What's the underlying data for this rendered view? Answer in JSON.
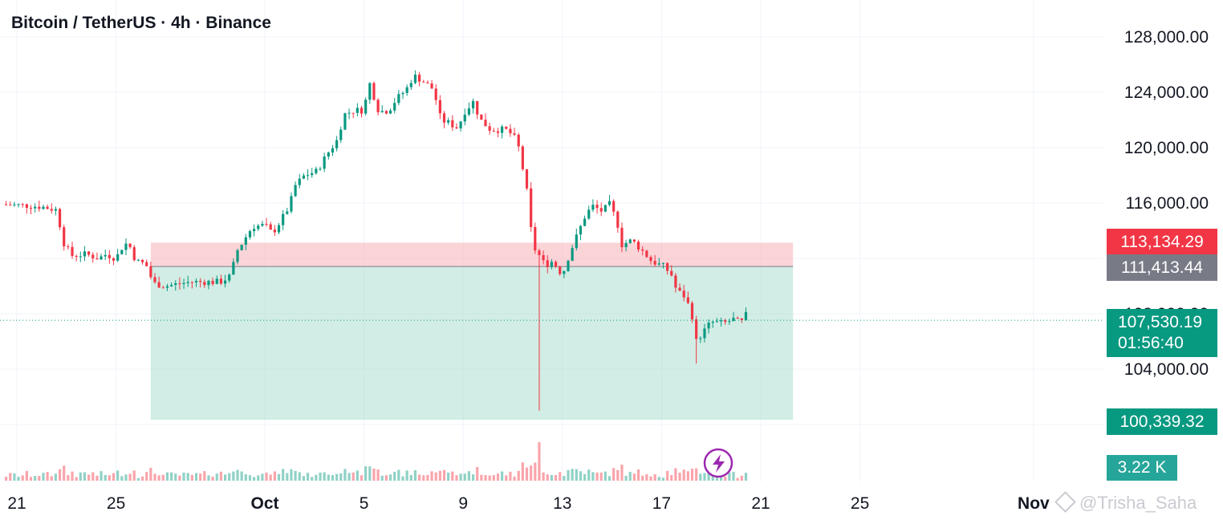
{
  "header": {
    "title": "Bitcoin / TetherUS · 4h · Binance"
  },
  "colors": {
    "up": "#089981",
    "down": "#F23645",
    "grid": "#F0F3FA",
    "axis_text": "#131722",
    "stop_zone": "#F7A9B2",
    "target_zone": "#A3DCCC",
    "bolt": "#9C27B0"
  },
  "price_tags": {
    "stop": {
      "label": "113,134.29",
      "color": "#F23645"
    },
    "entry": {
      "label": "111,413.44",
      "color": "#787B86"
    },
    "last": {
      "label": "107,530.19",
      "countdown": "01:56:40",
      "color": "#089981"
    },
    "target": {
      "label": "100,339.32",
      "color": "#089981"
    },
    "volume": {
      "label": "3.22 K",
      "color": "#26A69A"
    }
  },
  "watermark": {
    "text": "@Trisha_Saha",
    "icon": "binance-square-icon"
  },
  "icons": {
    "bolt": "lightning-bolt-icon"
  },
  "chart_data": {
    "type": "candlestick",
    "title": "Bitcoin / TetherUS · 4h · Binance",
    "interval": "4h",
    "ylim": [
      101000,
      129600
    ],
    "y_ticks": [
      {
        "value": 128000,
        "label": "128,000.00"
      },
      {
        "value": 124000,
        "label": "124,000.00"
      },
      {
        "value": 120000,
        "label": "120,000.00"
      },
      {
        "value": 116000,
        "label": "116,000.00"
      },
      {
        "value": 108000,
        "label": "108,000.00"
      },
      {
        "value": 104000,
        "label": "104,000.00"
      }
    ],
    "x_ticks": [
      {
        "label": "21",
        "day": 0
      },
      {
        "label": "25",
        "day": 4
      },
      {
        "label": "Oct",
        "day": 10
      },
      {
        "label": "5",
        "day": 14
      },
      {
        "label": "9",
        "day": 18
      },
      {
        "label": "13",
        "day": 22
      },
      {
        "label": "17",
        "day": 26
      },
      {
        "label": "21",
        "day": 30
      },
      {
        "label": "25",
        "day": 34
      },
      {
        "label": "Nov",
        "day": 41
      }
    ],
    "position": {
      "type": "short",
      "start_day": 5.4,
      "end_day": 31.3,
      "stop": 113134.29,
      "entry": 111413.44,
      "target": 100339.32
    },
    "last_price": 107530.19,
    "volume_last": "3.22 K",
    "anchors": [
      [
        -0.6,
        115900
      ],
      [
        0.6,
        115800
      ],
      [
        1.1,
        115700
      ],
      [
        1.6,
        115500
      ],
      [
        1.9,
        113100
      ],
      [
        2.2,
        112200
      ],
      [
        2.8,
        112300
      ],
      [
        3.3,
        112000
      ],
      [
        3.6,
        112300
      ],
      [
        4.0,
        112000
      ],
      [
        4.3,
        113000
      ],
      [
        4.5,
        113100
      ],
      [
        4.8,
        111800
      ],
      [
        5.2,
        111600
      ],
      [
        5.5,
        110200
      ],
      [
        6.0,
        110000
      ],
      [
        7.0,
        110300
      ],
      [
        8.2,
        110300
      ],
      [
        8.6,
        110700
      ],
      [
        8.9,
        112600
      ],
      [
        9.5,
        114300
      ],
      [
        10.0,
        114400
      ],
      [
        10.3,
        113800
      ],
      [
        10.6,
        114600
      ],
      [
        11.0,
        115800
      ],
      [
        11.2,
        117200
      ],
      [
        11.6,
        118000
      ],
      [
        12.1,
        118300
      ],
      [
        12.5,
        119500
      ],
      [
        12.9,
        120500
      ],
      [
        13.2,
        122400
      ],
      [
        13.6,
        122700
      ],
      [
        14.0,
        122700
      ],
      [
        14.2,
        124800
      ],
      [
        14.6,
        122600
      ],
      [
        15.0,
        122700
      ],
      [
        15.3,
        123500
      ],
      [
        15.7,
        124200
      ],
      [
        16.0,
        125200
      ],
      [
        16.3,
        124900
      ],
      [
        16.8,
        124200
      ],
      [
        17.1,
        122000
      ],
      [
        17.4,
        121800
      ],
      [
        17.8,
        121400
      ],
      [
        18.0,
        122500
      ],
      [
        18.4,
        123300
      ],
      [
        18.7,
        122000
      ],
      [
        19.1,
        121300
      ],
      [
        19.7,
        121300
      ],
      [
        20.0,
        120900
      ],
      [
        20.2,
        120300
      ],
      [
        20.4,
        118500
      ],
      [
        20.6,
        116500
      ],
      [
        20.8,
        112900
      ],
      [
        21.0,
        112400
      ],
      [
        21.3,
        111500
      ],
      [
        21.6,
        111800
      ],
      [
        22.0,
        110800
      ],
      [
        22.3,
        112400
      ],
      [
        22.6,
        113700
      ],
      [
        22.9,
        115000
      ],
      [
        23.2,
        115800
      ],
      [
        23.6,
        115400
      ],
      [
        23.9,
        115900
      ],
      [
        24.2,
        114700
      ],
      [
        24.4,
        113000
      ],
      [
        24.8,
        113300
      ],
      [
        25.2,
        112600
      ],
      [
        25.6,
        111800
      ],
      [
        26.1,
        111400
      ],
      [
        26.4,
        110800
      ],
      [
        26.6,
        109700
      ],
      [
        26.9,
        109300
      ],
      [
        27.2,
        108200
      ],
      [
        27.4,
        106000
      ],
      [
        27.6,
        106500
      ],
      [
        28.0,
        107400
      ],
      [
        28.5,
        107300
      ],
      [
        28.9,
        107600
      ],
      [
        29.2,
        107300
      ],
      [
        29.4,
        107900
      ],
      [
        29.5,
        107530.19
      ]
    ],
    "spike": {
      "day": 21.0,
      "low": 101000
    }
  }
}
